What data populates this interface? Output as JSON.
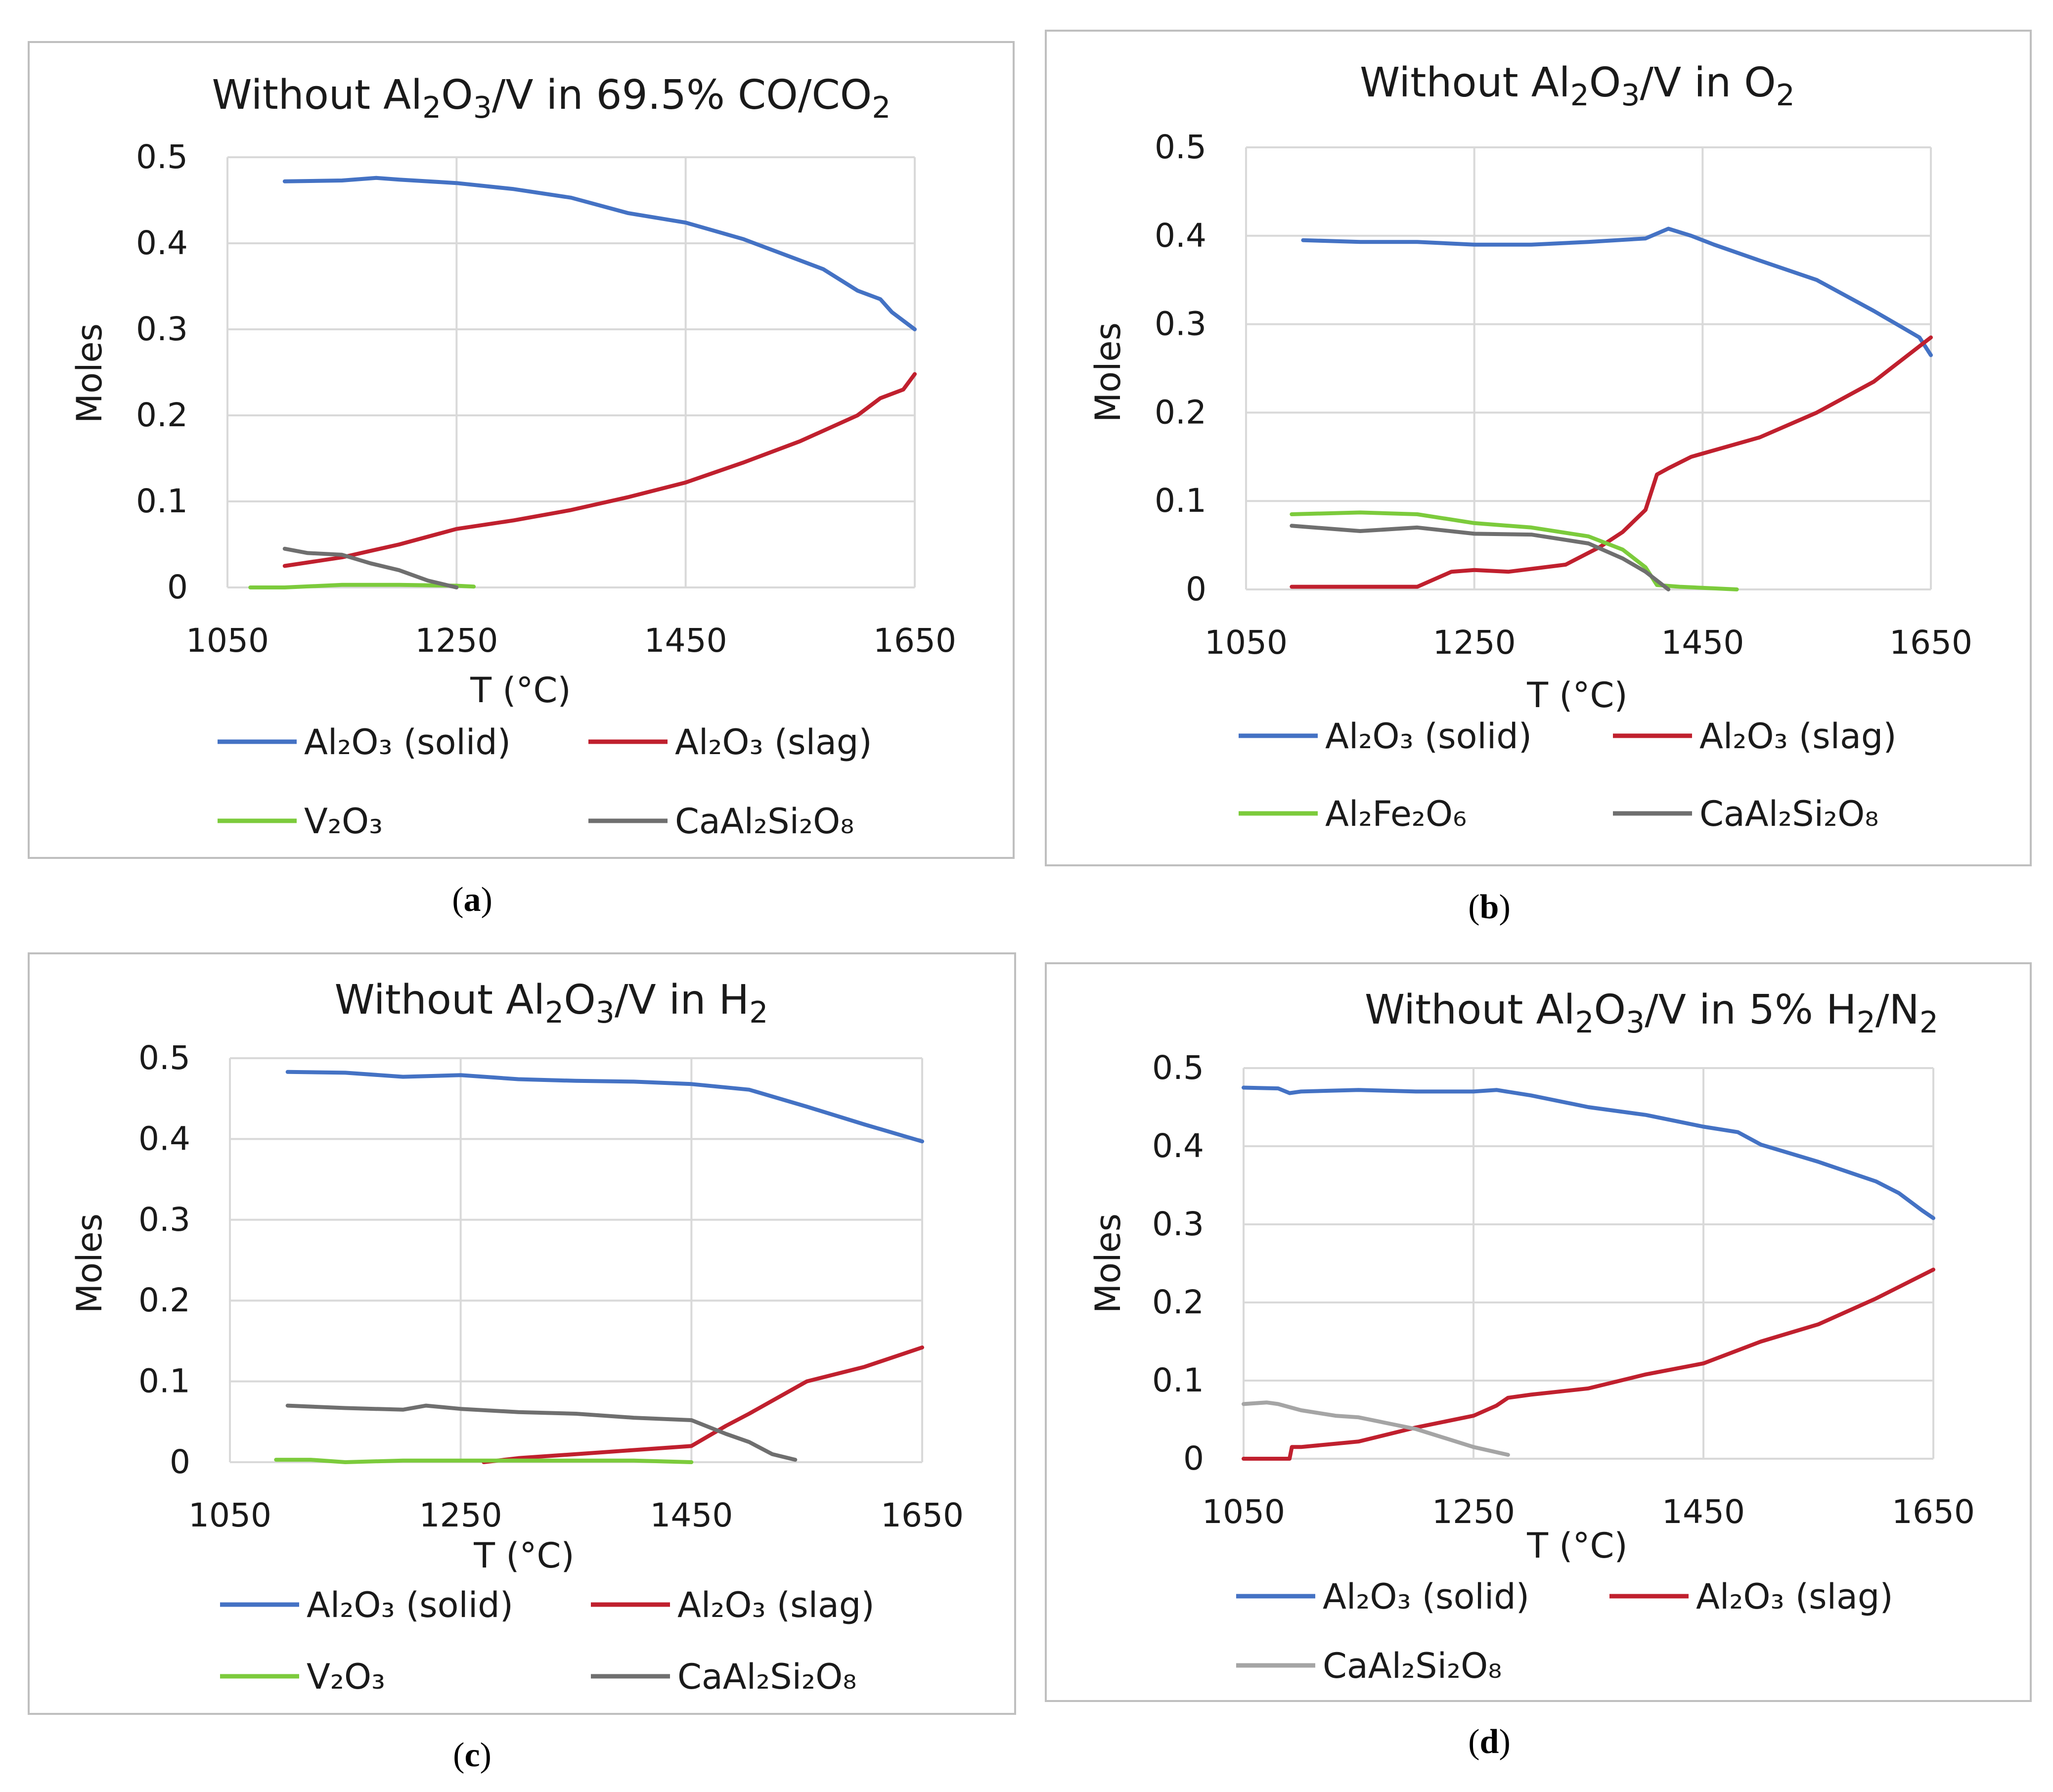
{
  "figure": {
    "captions": [
      {
        "open": "(",
        "letter": "a",
        "close": ")"
      },
      {
        "open": "(",
        "letter": "b",
        "close": ")"
      },
      {
        "open": "(",
        "letter": "c",
        "close": ")"
      },
      {
        "open": "(",
        "letter": "d",
        "close": ")"
      }
    ]
  },
  "colors": {
    "al2o3_solid": "#4472C4",
    "al2o3_slag": "#C0202E",
    "v2o3": "#7CCB3C",
    "al2fe2o6": "#7CCB3C",
    "caal2si2o8": "#6F6F6F",
    "caal2si2o8_light": "#A5A5A5",
    "grid": "#D9D9D9",
    "frame": "#BFBFBF"
  },
  "chart_data": [
    {
      "type": "line",
      "panel": "a",
      "title": {
        "prefix": "Without Al",
        "s1": "2",
        "mid1": "O",
        "s2": "3",
        "mid2": "/V in 69.5% CO/CO",
        "s3": "2",
        "suffix": ""
      },
      "xlabel": "T (°C)",
      "ylabel": "Moles",
      "xlim": [
        1050,
        1650
      ],
      "ylim": [
        0,
        0.5
      ],
      "xticks": [
        "1050",
        "1250",
        "1450",
        "1650"
      ],
      "yticks": [
        "0",
        "0.1",
        "0.2",
        "0.3",
        "0.4",
        "0.5"
      ],
      "grid": true,
      "legend_position": "bottom",
      "series": [
        {
          "name": "Al₂O₃ (solid)",
          "color_key": "al2o3_solid",
          "x": [
            1100,
            1150,
            1180,
            1200,
            1250,
            1300,
            1350,
            1400,
            1450,
            1500,
            1550,
            1570,
            1600,
            1620,
            1630,
            1650
          ],
          "y": [
            0.472,
            0.473,
            0.476,
            0.474,
            0.47,
            0.463,
            0.453,
            0.435,
            0.424,
            0.405,
            0.38,
            0.37,
            0.345,
            0.335,
            0.32,
            0.3
          ]
        },
        {
          "name": "Al₂O₃ (slag)",
          "color_key": "al2o3_slag",
          "x": [
            1100,
            1150,
            1200,
            1250,
            1300,
            1350,
            1400,
            1450,
            1500,
            1550,
            1600,
            1620,
            1640,
            1650
          ],
          "y": [
            0.025,
            0.035,
            0.05,
            0.068,
            0.078,
            0.09,
            0.105,
            0.122,
            0.145,
            0.17,
            0.2,
            0.22,
            0.23,
            0.248
          ]
        },
        {
          "name": "V₂O₃",
          "color_key": "v2o3",
          "x": [
            1070,
            1100,
            1150,
            1200,
            1250,
            1265
          ],
          "y": [
            0,
            0,
            0.003,
            0.003,
            0.002,
            0.001
          ]
        },
        {
          "name": "CaAl₂Si₂O₈",
          "color_key": "caal2si2o8",
          "x": [
            1100,
            1120,
            1150,
            1175,
            1200,
            1225,
            1250
          ],
          "y": [
            0.045,
            0.04,
            0.038,
            0.028,
            0.02,
            0.008,
            0
          ]
        }
      ]
    },
    {
      "type": "line",
      "panel": "b",
      "title": {
        "prefix": "Without Al",
        "s1": "2",
        "mid1": "O",
        "s2": "3",
        "mid2": "/V in O",
        "s3": "2",
        "suffix": ""
      },
      "xlabel": "T (°C)",
      "ylabel": "Moles",
      "xlim": [
        1050,
        1650
      ],
      "ylim": [
        0,
        0.5
      ],
      "xticks": [
        "1050",
        "1250",
        "1450",
        "1650"
      ],
      "yticks": [
        "0",
        "0.1",
        "0.2",
        "0.3",
        "0.4",
        "0.5"
      ],
      "grid": true,
      "legend_position": "bottom",
      "series": [
        {
          "name": "Al₂O₃ (solid)",
          "color_key": "al2o3_solid",
          "x": [
            1100,
            1150,
            1200,
            1250,
            1300,
            1350,
            1400,
            1420,
            1440,
            1460,
            1500,
            1550,
            1600,
            1620,
            1640,
            1650
          ],
          "y": [
            0.395,
            0.393,
            0.393,
            0.39,
            0.39,
            0.393,
            0.397,
            0.408,
            0.4,
            0.39,
            0.372,
            0.35,
            0.315,
            0.3,
            0.285,
            0.265
          ]
        },
        {
          "name": "Al₂O₃ (slag)",
          "color_key": "al2o3_slag",
          "x": [
            1090,
            1150,
            1200,
            1230,
            1250,
            1280,
            1330,
            1360,
            1380,
            1400,
            1410,
            1420,
            1440,
            1500,
            1550,
            1600,
            1650
          ],
          "y": [
            0.003,
            0.003,
            0.003,
            0.02,
            0.022,
            0.02,
            0.028,
            0.048,
            0.065,
            0.09,
            0.13,
            0.137,
            0.15,
            0.172,
            0.2,
            0.235,
            0.285
          ]
        },
        {
          "name": "Al₂Fe₂O₆",
          "color_key": "al2fe2o6",
          "x": [
            1090,
            1150,
            1200,
            1250,
            1300,
            1350,
            1380,
            1400,
            1410,
            1430,
            1480
          ],
          "y": [
            0.085,
            0.087,
            0.085,
            0.075,
            0.07,
            0.06,
            0.045,
            0.025,
            0.005,
            0.003,
            0
          ]
        },
        {
          "name": "CaAl₂Si₂O₈",
          "color_key": "caal2si2o8",
          "x": [
            1090,
            1150,
            1200,
            1250,
            1300,
            1350,
            1380,
            1400,
            1420
          ],
          "y": [
            0.072,
            0.066,
            0.07,
            0.063,
            0.062,
            0.052,
            0.035,
            0.02,
            0
          ]
        }
      ]
    },
    {
      "type": "line",
      "panel": "c",
      "title": {
        "prefix": "Without Al",
        "s1": "2",
        "mid1": "O",
        "s2": "3",
        "mid2": "/V in H",
        "s3": "2",
        "suffix": ""
      },
      "xlabel": "T (°C)",
      "ylabel": "Moles",
      "xlim": [
        1050,
        1650
      ],
      "ylim": [
        0,
        0.5
      ],
      "xticks": [
        "1050",
        "1250",
        "1450",
        "1650"
      ],
      "yticks": [
        "0",
        "0.1",
        "0.2",
        "0.3",
        "0.4",
        "0.5"
      ],
      "grid": true,
      "legend_position": "bottom",
      "series": [
        {
          "name": "Al₂O₃ (solid)",
          "color_key": "al2o3_solid",
          "x": [
            1100,
            1150,
            1200,
            1250,
            1300,
            1350,
            1400,
            1450,
            1500,
            1550,
            1600,
            1650
          ],
          "y": [
            0.483,
            0.482,
            0.477,
            0.479,
            0.474,
            0.472,
            0.471,
            0.468,
            0.461,
            0.44,
            0.418,
            0.397
          ]
        },
        {
          "name": "Al₂O₃ (slag)",
          "color_key": "al2o3_slag",
          "x": [
            1270,
            1300,
            1350,
            1400,
            1450,
            1480,
            1500,
            1550,
            1600,
            1650
          ],
          "y": [
            0,
            0.005,
            0.01,
            0.015,
            0.02,
            0.045,
            0.06,
            0.1,
            0.118,
            0.142
          ]
        },
        {
          "name": "V₂O₃",
          "color_key": "v2o3",
          "x": [
            1090,
            1120,
            1150,
            1200,
            1300,
            1400,
            1450
          ],
          "y": [
            0.003,
            0.003,
            0,
            0.002,
            0.002,
            0.002,
            0
          ]
        },
        {
          "name": "CaAl₂Si₂O₈",
          "color_key": "caal2si2o8",
          "x": [
            1100,
            1150,
            1200,
            1220,
            1250,
            1300,
            1350,
            1400,
            1450,
            1480,
            1500,
            1520,
            1540
          ],
          "y": [
            0.07,
            0.067,
            0.065,
            0.07,
            0.066,
            0.062,
            0.06,
            0.055,
            0.052,
            0.035,
            0.025,
            0.01,
            0.003
          ]
        }
      ]
    },
    {
      "type": "line",
      "panel": "d",
      "title": {
        "prefix": "Without Al",
        "s1": "2",
        "mid1": "O",
        "s2": "3",
        "mid2": "/V in 5% H",
        "s3": "2",
        "suffix": "/N",
        "s4": "2"
      },
      "xlabel": "T (°C)",
      "ylabel": "Moles",
      "xlim": [
        1050,
        1650
      ],
      "ylim": [
        0,
        0.5
      ],
      "xticks": [
        "1050",
        "1250",
        "1450",
        "1650"
      ],
      "yticks": [
        "0",
        "0.1",
        "0.2",
        "0.3",
        "0.4",
        "0.5"
      ],
      "grid": true,
      "legend_position": "bottom",
      "series": [
        {
          "name": "Al₂O₃ (solid)",
          "color_key": "al2o3_solid",
          "x": [
            1050,
            1080,
            1090,
            1100,
            1150,
            1200,
            1250,
            1270,
            1300,
            1350,
            1400,
            1450,
            1480,
            1500,
            1550,
            1600,
            1620,
            1640,
            1650
          ],
          "y": [
            0.475,
            0.474,
            0.468,
            0.47,
            0.472,
            0.47,
            0.47,
            0.472,
            0.465,
            0.45,
            0.44,
            0.425,
            0.418,
            0.402,
            0.38,
            0.355,
            0.34,
            0.318,
            0.308
          ]
        },
        {
          "name": "Al₂O₃ (slag)",
          "color_key": "al2o3_slag",
          "x": [
            1050,
            1090,
            1092,
            1100,
            1150,
            1200,
            1250,
            1270,
            1280,
            1300,
            1350,
            1400,
            1450,
            1500,
            1550,
            1600,
            1650
          ],
          "y": [
            0,
            0,
            0.015,
            0.015,
            0.022,
            0.04,
            0.055,
            0.068,
            0.078,
            0.082,
            0.09,
            0.108,
            0.122,
            0.15,
            0.172,
            0.205,
            0.242
          ]
        },
        {
          "name": "CaAl₂Si₂O₈",
          "color_key": "caal2si2o8_light",
          "x": [
            1050,
            1070,
            1080,
            1100,
            1130,
            1150,
            1200,
            1250,
            1280
          ],
          "y": [
            0.07,
            0.072,
            0.07,
            0.062,
            0.055,
            0.053,
            0.038,
            0.015,
            0.005
          ]
        }
      ]
    }
  ]
}
